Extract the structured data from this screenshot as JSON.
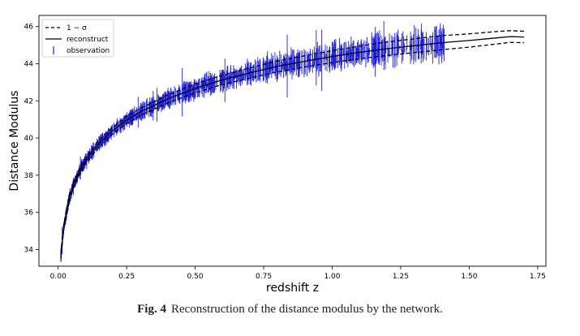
{
  "figure": {
    "caption_label": "Fig. 4",
    "caption_text": "Reconstruction of the distance modulus by the network."
  },
  "chart_data": {
    "type": "line",
    "xlabel": "redshift z",
    "ylabel": "Distance Modulus",
    "xlim": [
      -0.07,
      1.78
    ],
    "ylim": [
      33.1,
      46.6
    ],
    "xticks": [
      0.0,
      0.25,
      0.5,
      0.75,
      1.0,
      1.25,
      1.5,
      1.75
    ],
    "xtick_labels": [
      "0.00",
      "0.25",
      "0.50",
      "0.75",
      "1.00",
      "1.25",
      "1.50",
      "1.75"
    ],
    "yticks": [
      34,
      36,
      38,
      40,
      42,
      44,
      46
    ],
    "ytick_labels": [
      "34",
      "36",
      "38",
      "40",
      "42",
      "44",
      "46"
    ],
    "grid": false,
    "legend_position": "top-left",
    "series": [
      {
        "name": "1 − σ",
        "style": "dashed",
        "color": "#000000",
        "x": [
          0.01,
          0.02,
          0.04,
          0.06,
          0.08,
          0.1,
          0.15,
          0.2,
          0.25,
          0.3,
          0.4,
          0.5,
          0.6,
          0.7,
          0.8,
          0.9,
          1.0,
          1.1,
          1.2,
          1.3,
          1.4,
          1.5,
          1.6,
          1.65,
          1.7
        ],
        "upper": [
          33.78,
          35.29,
          36.88,
          37.77,
          38.44,
          38.93,
          39.88,
          40.59,
          41.15,
          41.59,
          42.32,
          42.91,
          43.38,
          43.77,
          44.15,
          44.43,
          44.7,
          44.95,
          45.17,
          45.34,
          45.51,
          45.61,
          45.73,
          45.78,
          45.75
        ],
        "lower": [
          33.5,
          35.01,
          36.59,
          37.48,
          38.13,
          38.63,
          39.55,
          40.23,
          40.77,
          41.21,
          41.89,
          42.43,
          42.88,
          43.23,
          43.56,
          43.83,
          44.06,
          44.27,
          44.44,
          44.6,
          44.75,
          44.89,
          45.06,
          45.15,
          45.13
        ]
      },
      {
        "name": "reconstruct",
        "style": "solid",
        "color": "#000000",
        "x": [
          0.01,
          0.02,
          0.04,
          0.06,
          0.08,
          0.1,
          0.15,
          0.2,
          0.25,
          0.3,
          0.4,
          0.5,
          0.6,
          0.7,
          0.8,
          0.9,
          1.0,
          1.1,
          1.2,
          1.3,
          1.4,
          1.5,
          1.6,
          1.65,
          1.7
        ],
        "y": [
          33.64,
          35.15,
          36.73,
          37.62,
          38.28,
          38.78,
          39.72,
          40.41,
          40.96,
          41.4,
          42.11,
          42.67,
          43.13,
          43.51,
          43.86,
          44.13,
          44.39,
          44.61,
          44.81,
          44.97,
          45.13,
          45.25,
          45.39,
          45.46,
          45.44
        ]
      },
      {
        "name": "observation",
        "style": "errorbar",
        "color": "#1f1fdd",
        "points": 1048,
        "z_range": [
          0.01,
          1.42
        ],
        "typical_error": [
          0.1,
          0.6
        ]
      }
    ]
  }
}
